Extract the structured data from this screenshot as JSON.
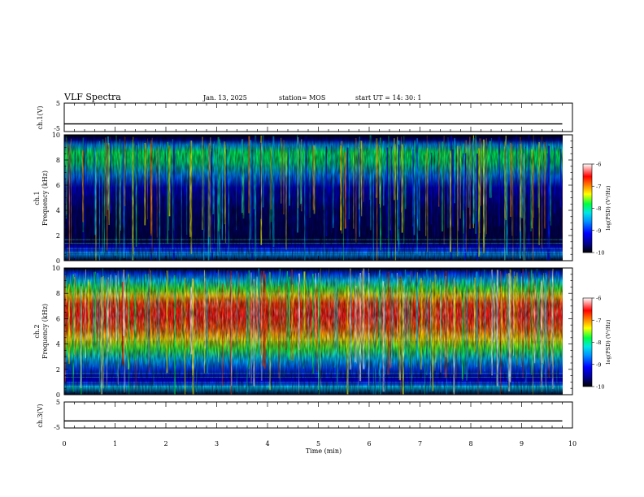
{
  "header": {
    "title": "VLF Spectra",
    "date": "Jan. 13, 2025",
    "station": "station= MOS",
    "start": "start  UT  =   14: 30: 1"
  },
  "chart_data": [
    {
      "type": "line",
      "panel": "ch1-voltage",
      "ylabel": "ch.1(V)",
      "ylim": [
        -5,
        5
      ],
      "yticks": [
        "5",
        "-5"
      ],
      "xlim": [
        0,
        10
      ],
      "series": [
        {
          "x": [
            0,
            9.8
          ],
          "y": [
            -2.3,
            -2.3
          ]
        }
      ]
    },
    {
      "type": "heatmap",
      "panel": "ch1-spectrogram",
      "ylabel": "ch.1\nFrequency (kHz)",
      "ylim": [
        0,
        10
      ],
      "yticks": [
        "0",
        "2",
        "4",
        "6",
        "8",
        "10"
      ],
      "xlim": [
        0,
        10
      ],
      "data_xmax": 9.8,
      "colorbar": {
        "label": "log(PSD) (V²/Hz)",
        "range": [
          -10,
          -6
        ],
        "ticks": [
          "-6",
          "-7",
          "-8",
          "-9",
          "-10"
        ]
      }
    },
    {
      "type": "heatmap",
      "panel": "ch2-spectrogram",
      "ylabel": "ch.2\nFrequency (kHz)",
      "ylim": [
        0,
        10
      ],
      "yticks": [
        "0",
        "2",
        "4",
        "6",
        "8",
        "10"
      ],
      "xlim": [
        0,
        10
      ],
      "data_xmax": 9.8,
      "colorbar": {
        "label": "log(PSD) (V²/Hz)",
        "range": [
          -10,
          -6
        ],
        "ticks": [
          "-6",
          "-7",
          "-8",
          "-9",
          "-10"
        ]
      }
    },
    {
      "type": "line",
      "panel": "ch3-voltage",
      "ylabel": "ch.3(V)",
      "ylim": [
        -5,
        5
      ],
      "yticks": [
        "5",
        "-5"
      ],
      "xlim": [
        0,
        10
      ],
      "series": [
        {
          "x": [
            0,
            9.8
          ],
          "y": [
            -2.3,
            -2.3
          ]
        }
      ]
    }
  ],
  "xaxis": {
    "label": "Time (min)",
    "ticks": [
      "0",
      "1",
      "2",
      "3",
      "4",
      "5",
      "6",
      "7",
      "8",
      "9",
      "10"
    ]
  },
  "colors": {
    "axes": "#000000",
    "background": "#ffffff",
    "colormap": [
      "#000000",
      "#00008c",
      "#0000ff",
      "#0090ff",
      "#00e6e6",
      "#00ff40",
      "#ffff00",
      "#ff8000",
      "#ff0000",
      "#ffffff"
    ]
  }
}
